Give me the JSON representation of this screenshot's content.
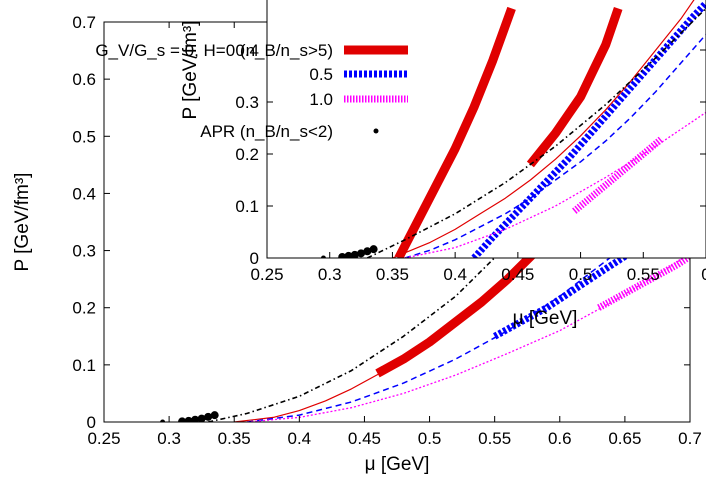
{
  "chart_data": [
    {
      "type": "line",
      "name": "main",
      "xlabel": "μ [GeV]",
      "ylabel": "P [GeV/fm³]",
      "xlim": [
        0.25,
        0.7
      ],
      "ylim": [
        0,
        0.7
      ],
      "xticks": [
        "0.25",
        "0.3",
        "0.35",
        "0.4",
        "0.45",
        "0.5",
        "0.55",
        "0.6",
        "0.65",
        "0.7"
      ],
      "yticks": [
        "0",
        "0.1",
        "0.2",
        "0.3",
        "0.4",
        "0.5",
        "0.6",
        "0.7"
      ],
      "grid": false,
      "series": [
        {
          "name": "G_V/G_s = 0, H=0 (thin)",
          "color": "#e00000",
          "style": "solid-thin",
          "x": [
            0.35,
            0.38,
            0.4,
            0.42,
            0.44,
            0.46,
            0.5,
            0.55,
            0.6,
            0.65,
            0.7
          ],
          "y": [
            0.0,
            0.008,
            0.02,
            0.037,
            0.058,
            0.083,
            0.14,
            0.23,
            0.34,
            0.48,
            0.63
          ]
        },
        {
          "name": "G_V/G_s = 0, H=0 (n_B/n_s>5)",
          "color": "#e00000",
          "style": "solid-thick",
          "x": [
            0.46,
            0.48,
            0.5,
            0.52,
            0.54,
            0.56,
            0.58,
            0.6,
            0.62,
            0.64,
            0.66,
            0.68,
            0.7
          ],
          "y": [
            0.085,
            0.11,
            0.14,
            0.175,
            0.21,
            0.25,
            0.295,
            0.34,
            0.39,
            0.44,
            0.5,
            0.56,
            0.62
          ]
        },
        {
          "name": "G_V/G_s = 0.5 (thin)",
          "color": "#0000ff",
          "style": "dash-thin",
          "x": [
            0.36,
            0.4,
            0.44,
            0.48,
            0.52,
            0.56,
            0.6,
            0.64,
            0.68,
            0.7
          ],
          "y": [
            0.0,
            0.012,
            0.035,
            0.068,
            0.11,
            0.16,
            0.22,
            0.29,
            0.37,
            0.41
          ]
        },
        {
          "name": "G_V/G_s = 0.5",
          "color": "#0000ff",
          "style": "dash-thick",
          "x": [
            0.55,
            0.57,
            0.59,
            0.61,
            0.63,
            0.65,
            0.67,
            0.7
          ],
          "y": [
            0.15,
            0.175,
            0.2,
            0.23,
            0.26,
            0.29,
            0.325,
            0.38
          ]
        },
        {
          "name": "G_V/G_s = 1.0 (thin)",
          "color": "#ff00ff",
          "style": "dot-thin",
          "x": [
            0.36,
            0.4,
            0.44,
            0.48,
            0.52,
            0.56,
            0.6,
            0.64,
            0.68,
            0.7
          ],
          "y": [
            0.0,
            0.008,
            0.025,
            0.05,
            0.082,
            0.12,
            0.16,
            0.21,
            0.265,
            0.295
          ]
        },
        {
          "name": "G_V/G_s = 1.0",
          "color": "#ff00ff",
          "style": "dot-thick",
          "x": [
            0.63,
            0.65,
            0.67,
            0.69,
            0.7
          ],
          "y": [
            0.2,
            0.225,
            0.25,
            0.275,
            0.29
          ]
        },
        {
          "name": "black dash-dot",
          "color": "#000000",
          "style": "dashdot-thin",
          "x": [
            0.33,
            0.36,
            0.4,
            0.44,
            0.48,
            0.52,
            0.56,
            0.6,
            0.64,
            0.66
          ],
          "y": [
            0.0,
            0.015,
            0.045,
            0.09,
            0.15,
            0.22,
            0.31,
            0.42,
            0.55,
            0.62
          ]
        },
        {
          "name": "APR (n_B/n_s<2)",
          "color": "#000000",
          "style": "dots",
          "x": [
            0.295,
            0.31,
            0.315,
            0.32,
            0.325,
            0.33,
            0.335
          ],
          "y": [
            0.0,
            0.001,
            0.002,
            0.004,
            0.006,
            0.009,
            0.012
          ]
        }
      ]
    },
    {
      "type": "line",
      "name": "inset",
      "xlabel": "μ [GeV]",
      "ylabel": "P [GeV/fm³]",
      "xlim": [
        0.25,
        0.6
      ],
      "ylim": [
        0,
        0.5
      ],
      "xticks": [
        "0.25",
        "0.3",
        "0.35",
        "0.4",
        "0.45",
        "0.5",
        "0.55",
        "0"
      ],
      "yticks": [
        "0",
        "0.1",
        "0.2",
        "0.3",
        "0.4"
      ],
      "grid": false,
      "series": [
        {
          "name": "G_V/G_s = 0, H=0 (thin)",
          "color": "#e00000",
          "style": "solid-thin",
          "x": [
            0.35,
            0.38,
            0.4,
            0.42,
            0.44,
            0.46,
            0.48,
            0.5,
            0.52,
            0.54,
            0.56,
            0.58,
            0.6
          ],
          "y": [
            0.0,
            0.03,
            0.055,
            0.085,
            0.115,
            0.15,
            0.19,
            0.235,
            0.285,
            0.34,
            0.4,
            0.46,
            0.53
          ]
        },
        {
          "name": "G_V/G_s = 0, H=0 (n_B/n_s>5)",
          "color": "#e00000",
          "style": "solid-thick",
          "x": [
            0.355,
            0.37,
            0.385,
            0.4,
            0.415,
            0.43,
            0.445
          ],
          "y": [
            0.0,
            0.07,
            0.14,
            0.21,
            0.29,
            0.38,
            0.48
          ]
        },
        {
          "name": "G_V/G_s = 0, H=0 (n_B/n_s>5) b",
          "color": "#e00000",
          "style": "solid-thick",
          "x": [
            0.46,
            0.47,
            0.48,
            0.49,
            0.5,
            0.51,
            0.52,
            0.53
          ],
          "y": [
            0.18,
            0.21,
            0.24,
            0.275,
            0.31,
            0.36,
            0.41,
            0.48
          ]
        },
        {
          "name": "G_V/G_s = 0.5 (thin)",
          "color": "#0000ff",
          "style": "dash-thin",
          "x": [
            0.36,
            0.38,
            0.4,
            0.42,
            0.44,
            0.46,
            0.48,
            0.5,
            0.52,
            0.54,
            0.56,
            0.58,
            0.6
          ],
          "y": [
            0.0,
            0.015,
            0.035,
            0.06,
            0.085,
            0.115,
            0.15,
            0.185,
            0.225,
            0.27,
            0.32,
            0.375,
            0.43
          ]
        },
        {
          "name": "G_V/G_s = 0.5",
          "color": "#0000ff",
          "style": "dash-thick",
          "x": [
            0.415,
            0.43,
            0.45,
            0.47,
            0.49,
            0.51,
            0.53,
            0.55,
            0.57,
            0.59,
            0.6
          ],
          "y": [
            0.0,
            0.04,
            0.09,
            0.14,
            0.19,
            0.245,
            0.3,
            0.355,
            0.41,
            0.465,
            0.49
          ]
        },
        {
          "name": "G_V/G_s = 1.0 (thin)",
          "color": "#ff00ff",
          "style": "dot-thin",
          "x": [
            0.36,
            0.4,
            0.44,
            0.48,
            0.52,
            0.56,
            0.6
          ],
          "y": [
            0.0,
            0.02,
            0.055,
            0.1,
            0.155,
            0.215,
            0.28
          ]
        },
        {
          "name": "G_V/G_s = 1.0",
          "color": "#ff00ff",
          "style": "dot-thick",
          "x": [
            0.495,
            0.51,
            0.525,
            0.54,
            0.555,
            0.565
          ],
          "y": [
            0.09,
            0.12,
            0.15,
            0.18,
            0.21,
            0.23
          ]
        },
        {
          "name": "black dash-dot",
          "color": "#000000",
          "style": "dashdot-thin",
          "x": [
            0.33,
            0.36,
            0.4,
            0.44,
            0.48,
            0.52,
            0.56,
            0.6
          ],
          "y": [
            0.0,
            0.035,
            0.085,
            0.145,
            0.215,
            0.295,
            0.385,
            0.48
          ]
        },
        {
          "name": "APR (n_B/n_s<2)",
          "color": "#000000",
          "style": "dots",
          "x": [
            0.295,
            0.31,
            0.315,
            0.32,
            0.325,
            0.33,
            0.335
          ],
          "y": [
            0.0,
            0.002,
            0.004,
            0.006,
            0.009,
            0.013,
            0.017
          ]
        }
      ]
    }
  ],
  "legend": {
    "placement": "top-left",
    "entries": [
      {
        "label": "G_V/G_s = 0, H=0 (n_B/n_s>5)",
        "color": "#e00000",
        "style": "solid-thick"
      },
      {
        "label": "0.5",
        "color": "#0000ff",
        "style": "dash-thick"
      },
      {
        "label": "1.0",
        "color": "#ff00ff",
        "style": "dot-thick"
      },
      {
        "label": "APR (n_B/n_s<2)",
        "color": "#000000",
        "style": "dots"
      }
    ]
  }
}
